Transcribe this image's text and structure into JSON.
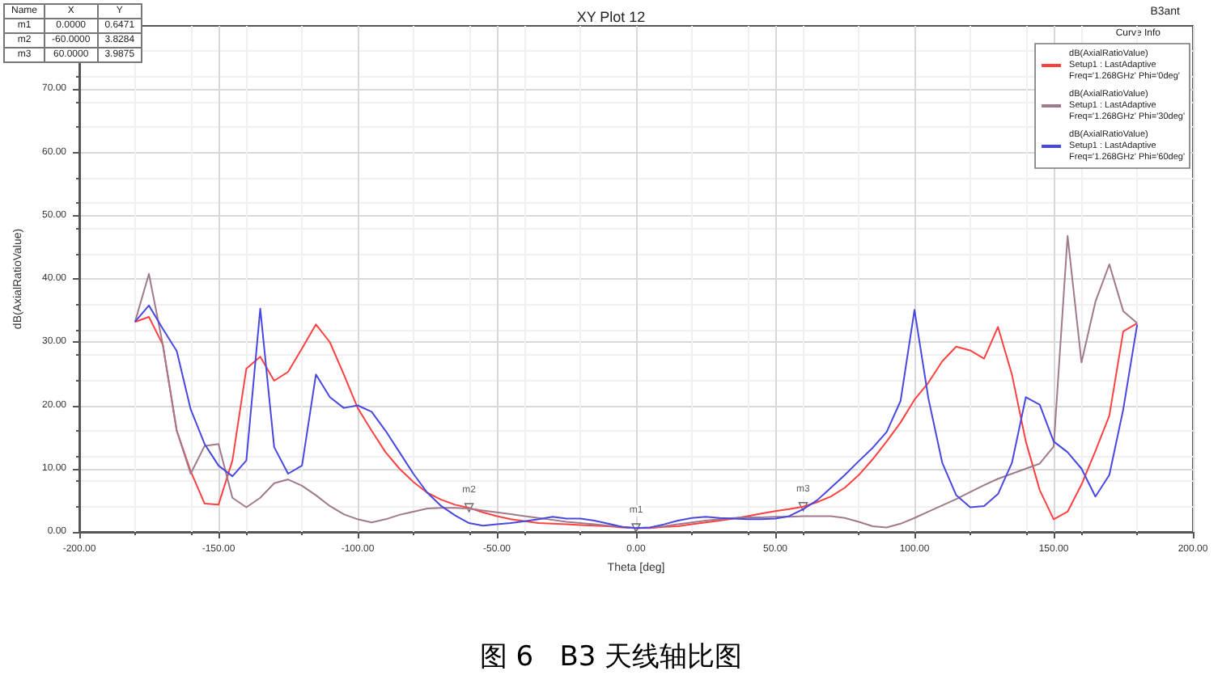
{
  "chart_data": {
    "type": "line",
    "title": "XY Plot 12",
    "xlabel": "Theta [deg]",
    "ylabel": "dB(AxialRatioValue)",
    "legend_title": "Curve Info",
    "legend": "top right",
    "grid": true,
    "marker": "none",
    "line_style": "solid",
    "xlim": [
      -200,
      200
    ],
    "ylim": [
      0,
      80
    ],
    "xticks": [
      {
        "value": -200,
        "label": "-200.00"
      },
      {
        "value": -150,
        "label": "-150.00"
      },
      {
        "value": -100,
        "label": "-100.00"
      },
      {
        "value": -50,
        "label": "-50.00"
      },
      {
        "value": 0,
        "label": "0.00"
      },
      {
        "value": 50,
        "label": "50.00"
      },
      {
        "value": 100,
        "label": "100.00"
      },
      {
        "value": 150,
        "label": "150.00"
      },
      {
        "value": 200,
        "label": "200.00"
      }
    ],
    "yticks": [
      {
        "value": 0,
        "label": "0.00"
      },
      {
        "value": 10,
        "label": "10.00"
      },
      {
        "value": 20,
        "label": "20.00"
      },
      {
        "value": 30,
        "label": "30.00"
      },
      {
        "value": 40,
        "label": "40.00"
      },
      {
        "value": 50,
        "label": "50.00"
      },
      {
        "value": 60,
        "label": "60.00"
      },
      {
        "value": 70,
        "label": "70.00"
      }
    ],
    "x": [
      -180,
      -175,
      -170,
      -165,
      -160,
      -155,
      -150,
      -145,
      -140,
      -135,
      -130,
      -125,
      -120,
      -115,
      -110,
      -105,
      -100,
      -95,
      -90,
      -85,
      -80,
      -75,
      -70,
      -65,
      -60,
      -55,
      -50,
      -45,
      -40,
      -35,
      -30,
      -25,
      -20,
      -15,
      -10,
      -5,
      0,
      5,
      10,
      15,
      20,
      25,
      30,
      35,
      40,
      45,
      50,
      55,
      60,
      65,
      70,
      75,
      80,
      85,
      90,
      95,
      100,
      105,
      110,
      115,
      120,
      125,
      130,
      135,
      140,
      145,
      150,
      155,
      160,
      165,
      170,
      175,
      180
    ],
    "series": [
      {
        "name": "dB(AxialRatioValue)\nSetup1 : LastAdaptive\nFreq='1.268GHz' Phi='0deg'",
        "color": "#ff4040",
        "values": [
          33.2,
          34.0,
          29.6,
          16,
          9.6,
          4.5,
          4.3,
          11.3,
          25.8,
          27.7,
          23.9,
          25.3,
          29,
          32.8,
          30,
          24.9,
          19.6,
          16,
          12.6,
          10,
          7.9,
          6.2,
          5.1,
          4.3,
          3.8,
          3.1,
          2.5,
          2.0,
          1.7,
          1.4,
          1.3,
          1.2,
          1.1,
          1.0,
          0.9,
          0.7,
          0.6,
          0.6,
          0.8,
          0.9,
          1.2,
          1.5,
          1.8,
          2.1,
          2.5,
          2.9,
          3.3,
          3.6,
          4.0,
          4.7,
          5.6,
          7,
          9,
          11.5,
          14.3,
          17.3,
          20.9,
          23.6,
          27,
          29.3,
          28.7,
          27.4,
          32.4,
          24.9,
          14.3,
          6.6,
          2,
          3.2,
          7.5,
          12.8,
          18.4,
          31.7,
          33
        ]
      },
      {
        "name": "dB(AxialRatioValue)\nSetup1 : LastAdaptive\nFreq='1.268GHz' Phi='30deg'",
        "color": "#a07a8c",
        "values": [
          33.2,
          40.8,
          29.6,
          16,
          9.2,
          13.6,
          13.9,
          5.4,
          3.9,
          5.4,
          7.7,
          8.3,
          7.3,
          5.8,
          4.1,
          2.8,
          2,
          1.5,
          2,
          2.7,
          3.2,
          3.7,
          3.8,
          3.8,
          3.7,
          3.4,
          3.1,
          2.8,
          2.5,
          2.2,
          1.9,
          1.6,
          1.4,
          1.2,
          1.0,
          0.8,
          0.6,
          0.7,
          0.9,
          1.2,
          1.5,
          1.8,
          2.0,
          2.2,
          2.3,
          2.3,
          2.4,
          2.4,
          2.5,
          2.5,
          2.5,
          2.2,
          1.6,
          0.9,
          0.7,
          1.3,
          2.2,
          3.2,
          4.2,
          5.2,
          6.3,
          7.4,
          8.4,
          9.2,
          10,
          10.8,
          13.5,
          46.8,
          26.8,
          36.4,
          42.3,
          34.9,
          33
        ]
      },
      {
        "name": "dB(AxialRatioValue)\nSetup1 : LastAdaptive\nFreq='1.268GHz' Phi='60deg'",
        "color": "#4848e0",
        "values": [
          33.2,
          35.8,
          32.1,
          28.6,
          19.4,
          13.9,
          10.5,
          8.8,
          11.3,
          35.3,
          13.4,
          9.2,
          10.5,
          24.9,
          21.3,
          19.6,
          20,
          19,
          16,
          12.6,
          9.2,
          6.2,
          4.1,
          2.6,
          1.4,
          1.0,
          1.2,
          1.4,
          1.7,
          2.0,
          2.4,
          2.1,
          2.1,
          1.8,
          1.3,
          0.8,
          0.6,
          0.7,
          1.2,
          1.8,
          2.2,
          2.4,
          2.2,
          2.1,
          2.0,
          2.0,
          2.1,
          2.5,
          3.6,
          5,
          7,
          9,
          11.2,
          13.3,
          15.8,
          20.7,
          35.1,
          21.1,
          10.9,
          5.8,
          3.9,
          4.1,
          6,
          10.9,
          21.3,
          20.1,
          14.3,
          12.6,
          10,
          5.6,
          9,
          19.4,
          32.8
        ]
      }
    ],
    "annotations": [
      "Name",
      "X",
      "Y",
      "m1",
      "0.0000",
      "0.6471",
      "m2",
      "-60.0000",
      "3.8284",
      "m3",
      "60.0000",
      "3.9875",
      "B3ant",
      "图 6   B3 天线轴比图",
      {
        "text": "m1",
        "x": 0,
        "y": 0.6471
      },
      {
        "text": "m2",
        "x": -60,
        "y": 3.8284
      },
      {
        "text": "m3",
        "x": 60,
        "y": 3.9875
      }
    ]
  }
}
